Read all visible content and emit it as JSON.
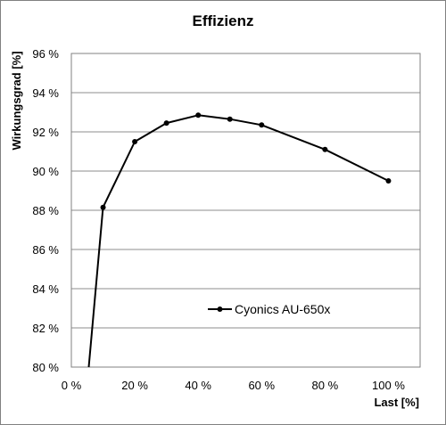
{
  "chart_data": {
    "type": "line",
    "title": "Effizienz",
    "xlabel": "Last [%]",
    "ylabel": "Wirkungsgrad [%]",
    "xlim": [
      0,
      110
    ],
    "ylim": [
      80,
      96
    ],
    "x_ticks": [
      0,
      20,
      40,
      60,
      80,
      100
    ],
    "x_tick_labels": [
      "0 %",
      "20 %",
      "40 %",
      "60 %",
      "80 %",
      "100 %"
    ],
    "y_ticks": [
      80,
      82,
      84,
      86,
      88,
      90,
      92,
      94,
      96
    ],
    "y_tick_labels": [
      "80 %",
      "82 %",
      "84 %",
      "86 %",
      "88 %",
      "90 %",
      "92 %",
      "94 %",
      "96 %"
    ],
    "grid": "horizontal",
    "legend_position": "center-right",
    "colors": {
      "line": "#000000",
      "grid": "#8c8c8c",
      "frame": "#808080"
    },
    "series": [
      {
        "name": "Cyonics AU-650x",
        "points": [
          {
            "x": 5.5,
            "y": 80.0,
            "marker": false
          },
          {
            "x": 10,
            "y": 88.15,
            "marker": true
          },
          {
            "x": 20,
            "y": 91.5,
            "marker": true
          },
          {
            "x": 30,
            "y": 92.45,
            "marker": true
          },
          {
            "x": 40,
            "y": 92.85,
            "marker": true
          },
          {
            "x": 50,
            "y": 92.65,
            "marker": true
          },
          {
            "x": 60,
            "y": 92.35,
            "marker": true
          },
          {
            "x": 80,
            "y": 91.1,
            "marker": true
          },
          {
            "x": 100,
            "y": 89.5,
            "marker": true
          }
        ]
      }
    ]
  }
}
